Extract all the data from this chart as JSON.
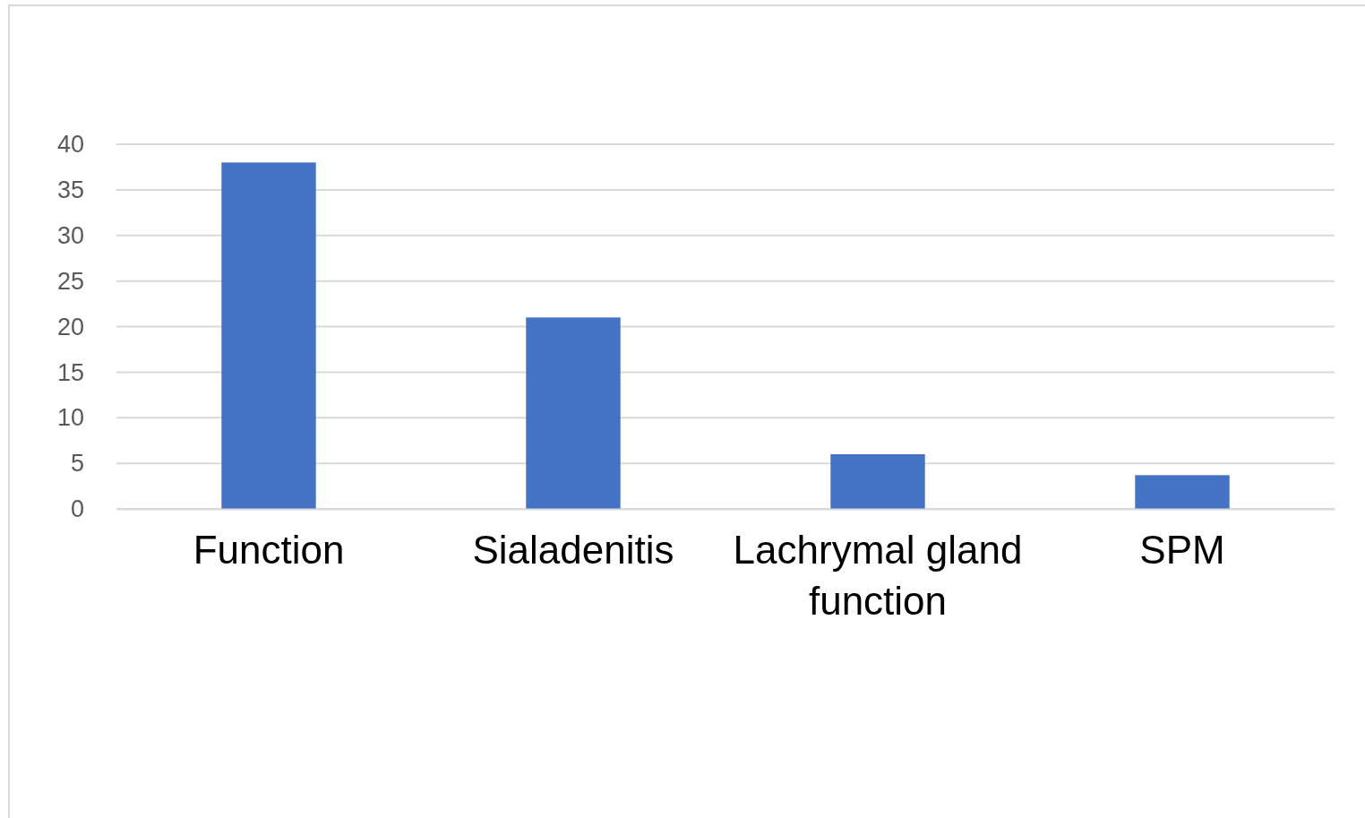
{
  "chart_data": {
    "type": "bar",
    "categories": [
      "Function",
      "Sialadenitis",
      "Lachrymal gland function",
      "SPM"
    ],
    "values": [
      38,
      21,
      6,
      3.7
    ],
    "color": "#4472c4",
    "ylim": [
      0,
      40
    ],
    "yticks": [
      0,
      5,
      10,
      15,
      20,
      25,
      30,
      35,
      40
    ],
    "grid": "y"
  }
}
